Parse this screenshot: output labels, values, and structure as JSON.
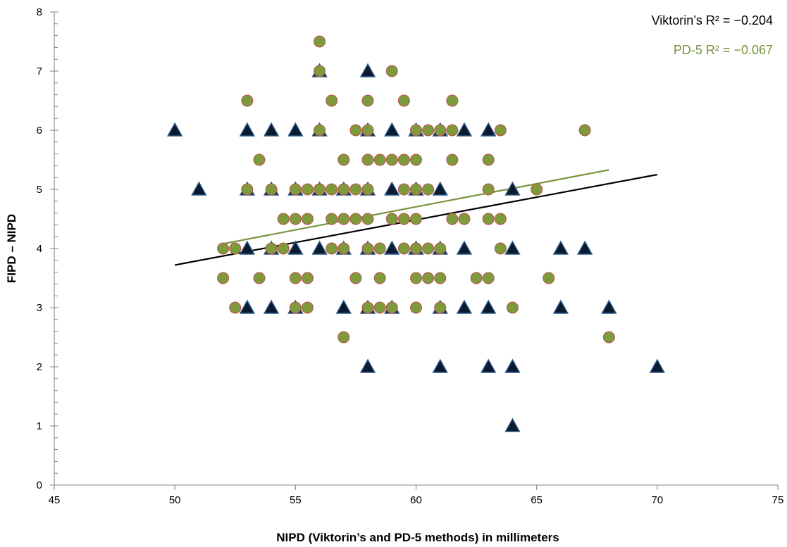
{
  "chart_data": {
    "type": "scatter",
    "xlabel": "NIPD (Viktorin’s and PD-5 methods) in millimeters",
    "ylabel": "FIPD – NIPD",
    "xlim": [
      45,
      75
    ],
    "ylim": [
      0,
      8
    ],
    "x_ticks": [
      45,
      50,
      55,
      60,
      65,
      70,
      75
    ],
    "y_ticks": [
      0,
      1,
      2,
      3,
      4,
      5,
      6,
      7,
      8
    ],
    "grid": false,
    "annotations": {
      "viktorin": "Viktorin’s R² = −0.204",
      "pd5": "PD-5 R²  = −0.067"
    },
    "colors": {
      "viktorin_marker": "#0b1a2e",
      "viktorin_marker_edge": "#2e5b8a",
      "pd5_marker": "#7d9a3c",
      "pd5_marker_edge": "#c0504d",
      "viktorin_trend": "#000000",
      "pd5_trend": "#77933c"
    },
    "series": [
      {
        "key": "viktorin",
        "marker": "triangle",
        "points": [
          [
            50,
            6
          ],
          [
            51,
            5
          ],
          [
            53,
            6
          ],
          [
            53,
            5
          ],
          [
            53,
            4
          ],
          [
            53,
            3
          ],
          [
            54,
            6
          ],
          [
            54,
            5
          ],
          [
            54,
            4
          ],
          [
            54,
            3
          ],
          [
            55,
            6
          ],
          [
            55,
            5
          ],
          [
            55,
            4
          ],
          [
            55,
            3
          ],
          [
            56,
            7
          ],
          [
            56,
            6
          ],
          [
            56,
            5
          ],
          [
            56,
            4
          ],
          [
            57,
            5
          ],
          [
            57,
            4
          ],
          [
            57,
            3
          ],
          [
            58,
            7
          ],
          [
            58,
            6
          ],
          [
            58,
            5
          ],
          [
            58,
            4
          ],
          [
            58,
            3
          ],
          [
            58,
            2
          ],
          [
            59,
            6
          ],
          [
            59,
            5
          ],
          [
            59,
            4
          ],
          [
            59,
            3
          ],
          [
            60,
            6
          ],
          [
            60,
            5
          ],
          [
            60,
            4
          ],
          [
            61,
            6
          ],
          [
            61,
            5
          ],
          [
            61,
            4
          ],
          [
            61,
            3
          ],
          [
            61,
            2
          ],
          [
            62,
            6
          ],
          [
            62,
            4
          ],
          [
            62,
            3
          ],
          [
            63,
            6
          ],
          [
            63,
            3
          ],
          [
            63,
            2
          ],
          [
            64,
            5
          ],
          [
            64,
            4
          ],
          [
            64,
            2
          ],
          [
            64,
            1
          ],
          [
            66,
            4
          ],
          [
            66,
            3
          ],
          [
            67,
            4
          ],
          [
            68,
            3
          ],
          [
            70,
            2
          ]
        ],
        "trend": [
          [
            50,
            3.72
          ],
          [
            70,
            5.25
          ]
        ]
      },
      {
        "key": "pd5",
        "marker": "circle",
        "points": [
          [
            52,
            4
          ],
          [
            52,
            3.5
          ],
          [
            52.5,
            4
          ],
          [
            52.5,
            3
          ],
          [
            53,
            6.5
          ],
          [
            53,
            5
          ],
          [
            53.5,
            5.5
          ],
          [
            53.5,
            3.5
          ],
          [
            54,
            5
          ],
          [
            54,
            4
          ],
          [
            54.5,
            4.5
          ],
          [
            54.5,
            4
          ],
          [
            55,
            5
          ],
          [
            55,
            4.5
          ],
          [
            55,
            3.5
          ],
          [
            55,
            3
          ],
          [
            55.5,
            5
          ],
          [
            55.5,
            4.5
          ],
          [
            55.5,
            3.5
          ],
          [
            55.5,
            3
          ],
          [
            56,
            7.5
          ],
          [
            56,
            7
          ],
          [
            56,
            6
          ],
          [
            56,
            5
          ],
          [
            56.5,
            6.5
          ],
          [
            56.5,
            5
          ],
          [
            56.5,
            4.5
          ],
          [
            56.5,
            4
          ],
          [
            57,
            5.5
          ],
          [
            57,
            5
          ],
          [
            57,
            4.5
          ],
          [
            57,
            4
          ],
          [
            57,
            2.5
          ],
          [
            57.5,
            6
          ],
          [
            57.5,
            5
          ],
          [
            57.5,
            4.5
          ],
          [
            57.5,
            3.5
          ],
          [
            58,
            6.5
          ],
          [
            58,
            6
          ],
          [
            58,
            5.5
          ],
          [
            58,
            5
          ],
          [
            58,
            4.5
          ],
          [
            58,
            4
          ],
          [
            58,
            3
          ],
          [
            58.5,
            5.5
          ],
          [
            58.5,
            4
          ],
          [
            58.5,
            3.5
          ],
          [
            58.5,
            3
          ],
          [
            59,
            7
          ],
          [
            59,
            5.5
          ],
          [
            59,
            4.5
          ],
          [
            59,
            3
          ],
          [
            59.5,
            6.5
          ],
          [
            59.5,
            5.5
          ],
          [
            59.5,
            5
          ],
          [
            59.5,
            4.5
          ],
          [
            59.5,
            4
          ],
          [
            60,
            6
          ],
          [
            60,
            5.5
          ],
          [
            60,
            5
          ],
          [
            60,
            4.5
          ],
          [
            60,
            4
          ],
          [
            60,
            3.5
          ],
          [
            60,
            3
          ],
          [
            60.5,
            6
          ],
          [
            60.5,
            5
          ],
          [
            60.5,
            4
          ],
          [
            60.5,
            3.5
          ],
          [
            61,
            6
          ],
          [
            61,
            4
          ],
          [
            61,
            3.5
          ],
          [
            61,
            3
          ],
          [
            61.5,
            6.5
          ],
          [
            61.5,
            6
          ],
          [
            61.5,
            5.5
          ],
          [
            61.5,
            4.5
          ],
          [
            62,
            4.5
          ],
          [
            62.5,
            3.5
          ],
          [
            63,
            5.5
          ],
          [
            63,
            5
          ],
          [
            63,
            4.5
          ],
          [
            63,
            3.5
          ],
          [
            63.5,
            6
          ],
          [
            63.5,
            4.5
          ],
          [
            63.5,
            4
          ],
          [
            64,
            3
          ],
          [
            65,
            5
          ],
          [
            65.5,
            3.5
          ],
          [
            67,
            6
          ],
          [
            68,
            2.5
          ]
        ],
        "trend": [
          [
            52,
            4.08
          ],
          [
            68,
            5.33
          ]
        ]
      }
    ]
  }
}
